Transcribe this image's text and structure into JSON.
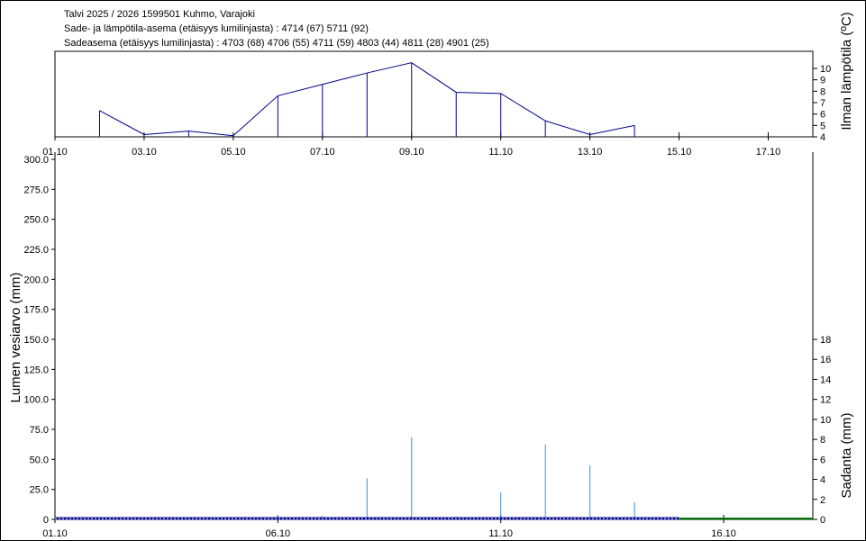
{
  "header": {
    "line1": "Talvi 2025 / 2026 1599501 Kuhmo, Varajoki",
    "line2": "Sade- ja lämpötila-asema (etäisyys lumilinjasta) :  4714 (67) 5711 (92)",
    "line3": "Sadeasema (etäisyys lumilinjasta) :  4703 (68) 4706 (55) 4711 (59) 4803 (44) 4811 (28) 4901 (25)"
  },
  "chart_data": [
    {
      "type": "line",
      "ylabel": "Ilman lämpötila (ºC)",
      "x_ticks": [
        "01.10",
        "03.10",
        "05.10",
        "07.10",
        "09.10",
        "11.10",
        "13.10",
        "15.10",
        "17.10"
      ],
      "x_tick_days": [
        1,
        3,
        5,
        7,
        9,
        11,
        13,
        15,
        17
      ],
      "xlim": [
        1,
        18
      ],
      "ylim": [
        4,
        11.5
      ],
      "y_ticks": [
        4,
        5,
        6,
        7,
        8,
        9,
        10
      ],
      "y_axis_side": "right",
      "color": "#00008b",
      "series": [
        {
          "x": [
            "02.10",
            "03.10",
            "04.10",
            "05.10",
            "06.10",
            "07.10",
            "08.10",
            "09.10",
            "10.10",
            "11.10",
            "12.10",
            "13.10",
            "14.10"
          ],
          "days": [
            2,
            3,
            4,
            5,
            6,
            7,
            8,
            9,
            10,
            11,
            12,
            13,
            14
          ],
          "values": [
            6.3,
            4.2,
            4.5,
            4.1,
            7.6,
            8.6,
            9.6,
            10.5,
            7.9,
            7.8,
            5.4,
            4.2,
            5.0
          ]
        }
      ]
    },
    {
      "type": "bar",
      "ylabel": "Lumen vesiarvo (mm)",
      "y2label": "Sadanta (mm)",
      "x_ticks": [
        "01.10",
        "06.10",
        "11.10",
        "16.10"
      ],
      "x_tick_days": [
        1,
        6,
        11,
        16
      ],
      "xlim": [
        1,
        18
      ],
      "ylim": [
        0,
        300
      ],
      "y_ticks": [
        "0",
        "25.0",
        "50.0",
        "75.0",
        "100.0",
        "125.0",
        "150.0",
        "175.0",
        "200.0",
        "225.0",
        "250.0",
        "275.0",
        "300.0"
      ],
      "y2lim": [
        0,
        36
      ],
      "y2_ticks": [
        "0",
        "2",
        "4",
        "6",
        "8",
        "10",
        "12",
        "14",
        "16",
        "18"
      ],
      "precip_color": "#3c8ce6",
      "snow_color": "#00008b",
      "forecast_color": "#007800",
      "precipitation": {
        "days": [
          6,
          7,
          8,
          9,
          10,
          11,
          12,
          13,
          14
        ],
        "values": [
          0.45,
          0.35,
          4.1,
          8.2,
          0.3,
          2.7,
          7.5,
          5.4,
          1.7
        ]
      },
      "snow_water": {
        "from_day": 1,
        "to_day": 15,
        "value": 0
      },
      "snow_forecast": {
        "from_day": 15,
        "to_day": 18,
        "value": 0
      }
    }
  ]
}
